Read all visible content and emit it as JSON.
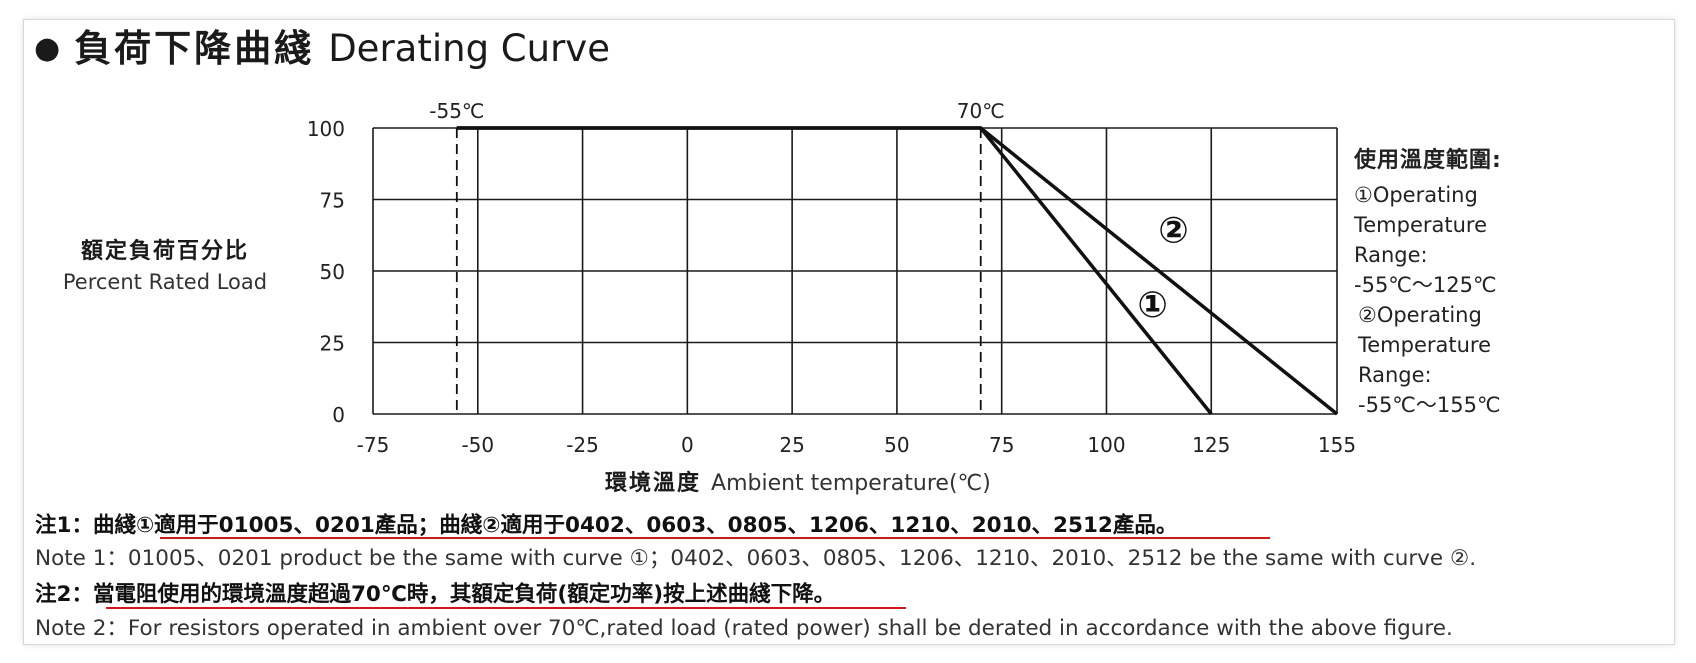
{
  "heading": {
    "bullet": "●",
    "zh": "負荷下降曲綫",
    "en": "Derating Curve"
  },
  "y_axis_label": {
    "zh": "額定負荷百分比",
    "en": "Percent Rated Load"
  },
  "x_axis_label": {
    "zh": "環境溫度",
    "en": "Ambient temperature(℃)"
  },
  "operating_range": {
    "title": "使用溫度範圍:",
    "lines": [
      "①Operating",
      "Temperature",
      "Range:",
      "-55℃～125℃",
      "②Operating",
      "Temperature",
      "Range:",
      "-55℃～155℃"
    ]
  },
  "notes": {
    "note1_zh": "注1：曲綫①適用于01005、0201產品；曲綫②適用于0402、0603、0805、1206、1210、2010、2512產品。",
    "note1_en": "Note 1：01005、0201 product be the same with curve ①；0402、0603、0805、1206、1210、2010、2512 be the same with curve ②.",
    "note2_zh": "注2：當電阻使用的環境溫度超過70℃時，其額定負荷(額定功率)按上述曲綫下降。",
    "note2_en": "Note 2：For resistors operated in ambient over 70℃,rated load (rated power) shall be derated in accordance with the above figure."
  },
  "colors": {
    "line": "#111111",
    "grid": "#1a1a1a",
    "underline": "#d01a1a"
  },
  "chart_data": {
    "type": "line",
    "xlabel": "環境溫度 Ambient temperature(℃)",
    "ylabel": "額定負荷百分比 Percent Rated Load",
    "xlim": [
      -75,
      155
    ],
    "ylim": [
      0,
      100
    ],
    "x_ticks": [
      -75,
      -50,
      -25,
      0,
      25,
      50,
      75,
      100,
      125,
      155
    ],
    "y_ticks": [
      0,
      25,
      50,
      75,
      100
    ],
    "x_gridlines": [
      -50,
      -25,
      0,
      25,
      50,
      75,
      100,
      125
    ],
    "grid": true,
    "series": [
      {
        "name": "①",
        "x": [
          -55,
          70,
          125
        ],
        "y": [
          100,
          100,
          0
        ]
      },
      {
        "name": "②",
        "x": [
          -55,
          70,
          155
        ],
        "y": [
          100,
          100,
          0
        ]
      }
    ],
    "markers": [
      {
        "label": "-55℃",
        "x": -55
      },
      {
        "label": "70℃",
        "x": 70
      }
    ],
    "curve_labels": [
      {
        "label": "①",
        "x": 111,
        "y": 34
      },
      {
        "label": "②",
        "x": 116,
        "y": 60
      }
    ]
  }
}
